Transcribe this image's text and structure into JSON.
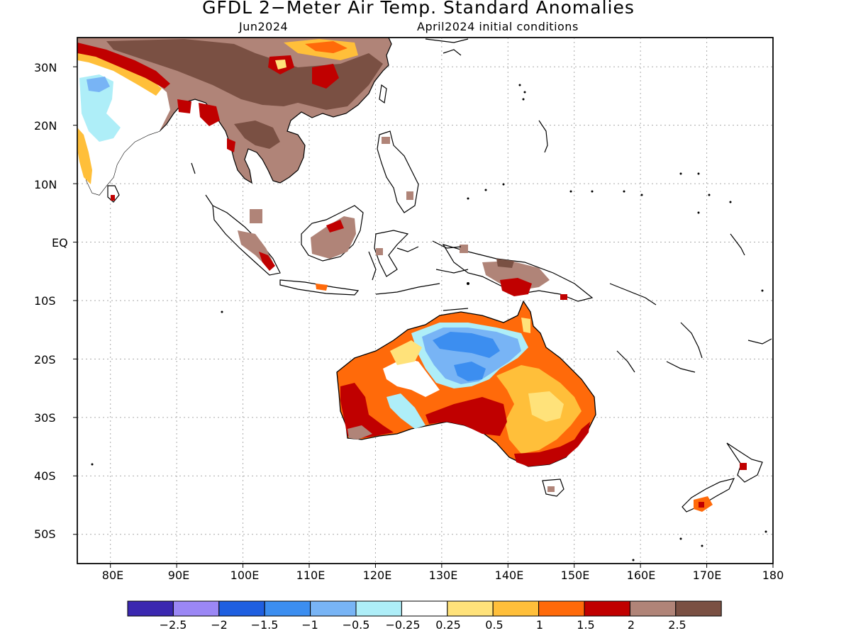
{
  "title": "GFDL 2−Meter Air Temp. Standard Anomalies",
  "subtitle_left": "Jun2024",
  "subtitle_right": "April2024 initial conditions",
  "lat_labels": [
    "30N",
    "20N",
    "10N",
    "EQ",
    "10S",
    "20S",
    "30S",
    "40S",
    "50S"
  ],
  "lon_labels": [
    "80E",
    "90E",
    "100E",
    "110E",
    "120E",
    "130E",
    "140E",
    "150E",
    "160E",
    "170E",
    "180"
  ],
  "colorbar": {
    "colors": [
      "#3b28b0",
      "#9b87f5",
      "#1f5fe0",
      "#3c8ef0",
      "#78b4f5",
      "#aeeef8",
      "#ffffff",
      "#ffe27a",
      "#ffbf3a",
      "#ff6a0a",
      "#c00000",
      "#b08478",
      "#7a5043"
    ],
    "labels": [
      "−2.5",
      "−2",
      "−1.5",
      "−1",
      "−0.5",
      "−0.25",
      "0.25",
      "0.5",
      "1",
      "1.5",
      "2",
      "2.5"
    ]
  },
  "map": {
    "lon_range": [
      75,
      180
    ],
    "lat_range": [
      -55,
      35
    ],
    "grid": "dotted",
    "land_outline_color": "#000000"
  }
}
